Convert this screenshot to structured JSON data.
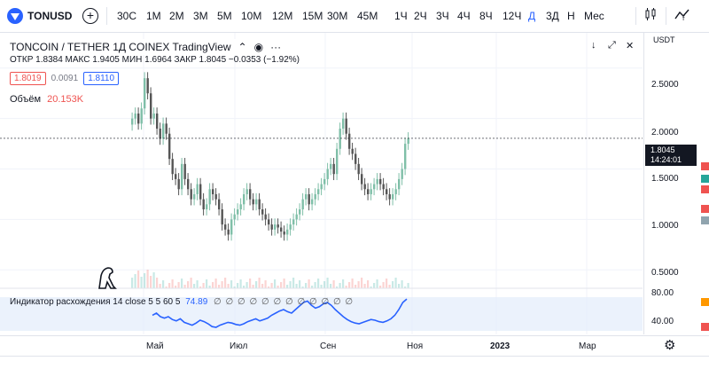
{
  "toolbar": {
    "symbol": "TONUSD",
    "add_symbol": "+",
    "timeframes": [
      "30С",
      "1М",
      "2М",
      "3М",
      "5М",
      "10М",
      "12М",
      "15М",
      "30М",
      "45М",
      "1Ч",
      "2Ч",
      "3Ч",
      "4Ч",
      "8Ч",
      "12Ч",
      "Д",
      "3Д",
      "Н",
      "Мес"
    ],
    "active_timeframe": "Д"
  },
  "legend": {
    "title": "TONCOIN / TETHER   1Д   COINEX   TradingView",
    "open_label": "ОТКР",
    "open": "1.8384",
    "high_label": "МАКС",
    "high": "1.9405",
    "low_label": "МИН",
    "low": "1.6964",
    "close_label": "ЗАКР",
    "close": "1.8045",
    "change": "−0.0353 (−1.92%)",
    "bid": "1.8019",
    "spread": "0.0091",
    "ask": "1.8110",
    "volume_label": "Объём",
    "volume": "20.153K"
  },
  "indicator": {
    "label": "Индикатор расхождения 14 close 5 5 60 5",
    "value": "74.89",
    "circles": "∅ ∅ ∅ ∅ ∅ ∅ ∅ ∅ ∅ ∅ ∅ ∅"
  },
  "price_axis": {
    "currency": "USDT",
    "ticks": [
      "2.5000",
      "2.0000",
      "1.5000",
      "1.0000",
      "0.5000"
    ],
    "indicator_ticks": [
      "80.00",
      "40.00"
    ],
    "last_price": "1.8045",
    "countdown": "14:24:01"
  },
  "time_axis": {
    "labels": [
      "Май",
      "Июл",
      "Сен",
      "Ноя",
      "2023",
      "Мар"
    ]
  },
  "colors": {
    "up": "#26a69a",
    "down": "#ef5350",
    "accent": "#2962ff",
    "indicator_line": "#2962ff"
  },
  "chart_data": {
    "type": "candlestick",
    "ylim": [
      0.3,
      2.85
    ],
    "yticks": [
      2.5,
      2.0,
      1.5,
      1.0,
      0.5
    ],
    "last_price": 1.8045,
    "closes": [
      2.0,
      2.05,
      1.95,
      2.1,
      2.4,
      2.25,
      2.0,
      2.05,
      1.9,
      1.8,
      1.95,
      1.85,
      1.6,
      1.45,
      1.4,
      1.3,
      1.55,
      1.4,
      1.3,
      1.2,
      1.25,
      1.35,
      1.2,
      1.1,
      1.15,
      1.3,
      1.25,
      1.2,
      1.1,
      0.95,
      0.9,
      0.85,
      1.0,
      1.05,
      1.1,
      1.15,
      1.25,
      1.3,
      1.2,
      1.15,
      1.2,
      1.1,
      1.05,
      1.0,
      0.95,
      0.9,
      0.95,
      0.92,
      0.88,
      0.85,
      0.9,
      0.95,
      1.0,
      1.05,
      1.1,
      1.2,
      1.25,
      1.15,
      1.2,
      1.25,
      1.3,
      1.35,
      1.4,
      1.5,
      1.55,
      1.45,
      1.7,
      1.9,
      2.0,
      1.85,
      1.7,
      1.65,
      1.55,
      1.45,
      1.35,
      1.3,
      1.25,
      1.3,
      1.35,
      1.4,
      1.35,
      1.3,
      1.25,
      1.2,
      1.25,
      1.3,
      1.4,
      1.5,
      1.75,
      1.8045
    ],
    "indicator": {
      "ylim": [
        25,
        90
      ],
      "values": [
        52,
        55,
        50,
        48,
        50,
        46,
        44,
        47,
        42,
        40,
        38,
        41,
        45,
        43,
        40,
        36,
        35,
        38,
        40,
        42,
        41,
        39,
        38,
        40,
        43,
        45,
        47,
        44,
        46,
        48,
        52,
        55,
        58,
        60,
        57,
        55,
        60,
        65,
        70,
        72,
        66,
        62,
        64,
        68,
        70,
        66,
        60,
        55,
        50,
        46,
        43,
        41,
        40,
        42,
        44,
        46,
        45,
        43,
        42,
        44,
        47,
        52,
        60,
        70,
        74.89
      ]
    }
  }
}
